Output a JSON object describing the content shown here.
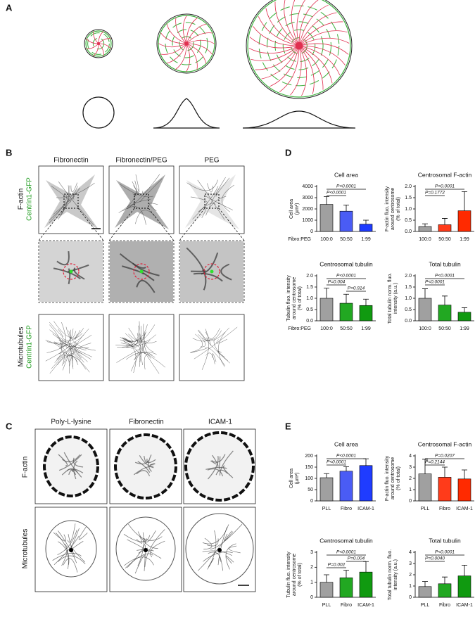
{
  "panel_labels": [
    "A",
    "B",
    "C",
    "D",
    "E"
  ],
  "panel_b": {
    "columns": [
      "Fibronectin",
      "Fibronectin/PEG",
      "PEG"
    ],
    "rows": [
      [
        "F-actin",
        "Centrin1-GFP"
      ],
      [
        "Microtubules",
        "Centrin1-GFP"
      ]
    ]
  },
  "panel_c": {
    "columns": [
      "Poly-L-lysine",
      "Fibronectin",
      "ICAM-1"
    ],
    "rows": [
      "F-actin",
      "Microtubules"
    ]
  },
  "chart_data": [
    {
      "type": "bar",
      "title": "Cell area",
      "ylabel": [
        "Cell area",
        "(µm²)"
      ],
      "xlabel": "Fibro:PEG",
      "categories": [
        "100:0",
        "50:50",
        "1:99"
      ],
      "values": [
        2400,
        1800,
        650
      ],
      "errors": [
        700,
        550,
        350
      ],
      "colors": [
        "#a0a0a0",
        "#4a5cf5",
        "#1f3cff"
      ],
      "ylim": [
        0,
        4000
      ],
      "yticks": [
        0,
        1000,
        2000,
        3000,
        4000
      ],
      "significance": [
        {
          "text": "P<0.0001",
          "from": "100:0",
          "to": "1:99"
        },
        {
          "text": "P<0.0001",
          "from": "100:0",
          "to": "50:50"
        }
      ]
    },
    {
      "type": "bar",
      "title": "Centrosomal F-actin",
      "ylabel": [
        "F-actin fluo. intensity",
        "around centrosome",
        "(% of total)"
      ],
      "categories": [
        "100:0",
        "50:50",
        "1:99"
      ],
      "values": [
        0.22,
        0.3,
        0.92
      ],
      "errors": [
        0.12,
        0.28,
        0.85
      ],
      "colors": [
        "#a0a0a0",
        "#ff3b1a",
        "#ff2a00"
      ],
      "ylim": [
        0,
        2.0
      ],
      "yticks": [
        {
          "value": 0,
          "label": "0.0"
        },
        {
          "value": 0.5,
          "label": "0.5"
        },
        {
          "value": 1,
          "label": "1.0"
        },
        {
          "value": 1.5,
          "label": "1.5"
        },
        {
          "value": 2,
          "label": "2.0"
        }
      ],
      "significance": [
        {
          "text": "P<0.0001",
          "from": "100:0",
          "to": "1:99"
        },
        {
          "text": "P=0.1772",
          "from": "100:0",
          "to": "50:50"
        }
      ]
    },
    {
      "type": "bar",
      "title": "Centrosomal tubulin",
      "ylabel": [
        "Tubulin fluo. intensity",
        "around centrosome",
        "(% of total)"
      ],
      "xlabel": "Fibro:PEG",
      "categories": [
        "100:0",
        "50:50",
        "1:99"
      ],
      "values": [
        1.0,
        0.78,
        0.68
      ],
      "errors": [
        0.45,
        0.4,
        0.28
      ],
      "colors": [
        "#a0a0a0",
        "#22a822",
        "#109a10"
      ],
      "ylim": [
        0,
        2.0
      ],
      "yticks": [
        {
          "value": 0,
          "label": "0.0"
        },
        {
          "value": 0.5,
          "label": "0.5"
        },
        {
          "value": 1,
          "label": "1.0"
        },
        {
          "value": 1.5,
          "label": "1.5"
        },
        {
          "value": 2,
          "label": "2.0"
        }
      ],
      "significance": [
        {
          "text": "P<0.0001",
          "from": "100:0",
          "to": "1:99"
        },
        {
          "text": "P=0.004",
          "from": "100:0",
          "to": "50:50"
        },
        {
          "text": "P=0.914",
          "from": "50:50",
          "to": "1:99"
        }
      ]
    },
    {
      "type": "bar",
      "title": "Total tubulin",
      "ylabel": [
        "Total tubulin norm. fluo.",
        "intensity (a.u.)"
      ],
      "categories": [
        "100:0",
        "50:50",
        "1:99"
      ],
      "values": [
        1.0,
        0.7,
        0.38
      ],
      "errors": [
        0.42,
        0.4,
        0.2
      ],
      "colors": [
        "#a0a0a0",
        "#22a822",
        "#109a10"
      ],
      "ylim": [
        0,
        2.0
      ],
      "yticks": [
        {
          "value": 0,
          "label": "0.0"
        },
        {
          "value": 0.5,
          "label": "0.5"
        },
        {
          "value": 1,
          "label": "1.0"
        },
        {
          "value": 1.5,
          "label": "1.5"
        },
        {
          "value": 2,
          "label": "2.0"
        }
      ],
      "significance": [
        {
          "text": "P<0.0001",
          "from": "100:0",
          "to": "1:99"
        },
        {
          "text": "P<0.0001",
          "from": "100:0",
          "to": "50:50"
        }
      ]
    },
    {
      "type": "bar",
      "title": "Cell area",
      "ylabel": [
        "Cell area",
        "(µm²)"
      ],
      "categories": [
        "PLL",
        "Fibro",
        "ICAM-1"
      ],
      "values": [
        103,
        132,
        157
      ],
      "errors": [
        18,
        20,
        30
      ],
      "colors": [
        "#a0a0a0",
        "#4a5cf5",
        "#1f3cff"
      ],
      "ylim": [
        0,
        200
      ],
      "yticks": [
        0,
        50,
        100,
        150,
        200
      ],
      "significance": [
        {
          "text": "P<0.0001",
          "from": "PLL",
          "to": "ICAM-1"
        },
        {
          "text": "P<0.0001",
          "from": "PLL",
          "to": "Fibro"
        }
      ]
    },
    {
      "type": "bar",
      "title": "Centrosomal F-actin",
      "ylabel": [
        "F-actin fluo. intensity",
        "around centrosome",
        "(% of total)"
      ],
      "categories": [
        "PLL",
        "Fibro",
        "ICAM-1"
      ],
      "values": [
        2.4,
        2.1,
        1.95
      ],
      "errors": [
        1.3,
        0.9,
        0.8
      ],
      "colors": [
        "#a0a0a0",
        "#ff3b1a",
        "#ff2a00"
      ],
      "ylim": [
        0,
        4
      ],
      "yticks": [
        0,
        1,
        2,
        3,
        4
      ],
      "significance": [
        {
          "text": "P=0.0207",
          "from": "PLL",
          "to": "ICAM-1"
        },
        {
          "text": "P=0.2144",
          "from": "PLL",
          "to": "Fibro"
        }
      ]
    },
    {
      "type": "bar",
      "title": "Centrosomal tubulin",
      "ylabel": [
        "Tubulin fluo. intensity",
        "around centrosome",
        "(% of total)"
      ],
      "categories": [
        "PLL",
        "Fibro",
        "ICAM-1"
      ],
      "values": [
        1.0,
        1.3,
        1.68
      ],
      "errors": [
        0.5,
        0.5,
        0.7
      ],
      "colors": [
        "#a0a0a0",
        "#22a822",
        "#109a10"
      ],
      "ylim": [
        0,
        3
      ],
      "yticks": [
        0,
        1,
        2,
        3
      ],
      "significance": [
        {
          "text": "P<0.0001",
          "from": "PLL",
          "to": "ICAM-1"
        },
        {
          "text": "P=0.004",
          "from": "Fibro",
          "to": "ICAM-1"
        },
        {
          "text": "P=0.002",
          "from": "PLL",
          "to": "Fibro"
        }
      ]
    },
    {
      "type": "bar",
      "title": "Total tubulin",
      "ylabel": [
        "Total tubulin norm. fluo.",
        "intensity (a.u.)"
      ],
      "categories": [
        "PLL",
        "Fibro",
        "ICAM-1"
      ],
      "values": [
        0.95,
        1.2,
        1.9
      ],
      "errors": [
        0.45,
        0.6,
        0.95
      ],
      "colors": [
        "#a0a0a0",
        "#22a822",
        "#109a10"
      ],
      "ylim": [
        0,
        4
      ],
      "yticks": [
        0,
        1,
        2,
        3,
        4
      ],
      "significance": [
        {
          "text": "P<0.0001",
          "from": "PLL",
          "to": "ICAM-1"
        },
        {
          "text": "P=0.0040",
          "from": "PLL",
          "to": "Fibro"
        }
      ]
    }
  ]
}
